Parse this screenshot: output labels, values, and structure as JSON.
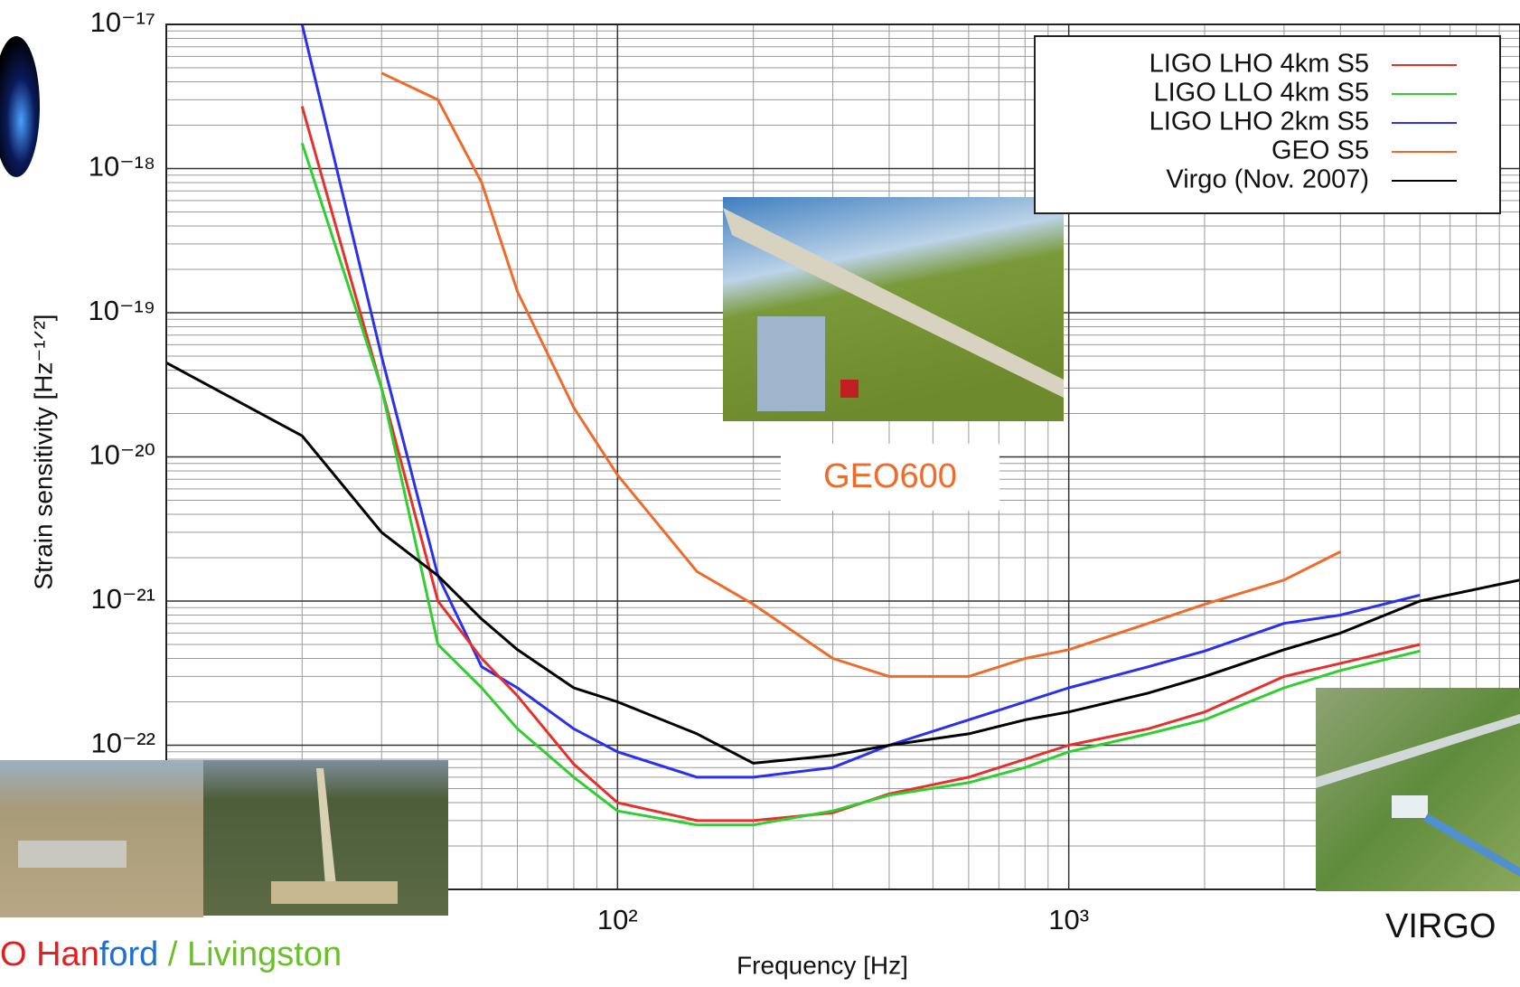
{
  "chart_data": {
    "type": "line",
    "x_label": "Frequency [Hz]",
    "y_label": "Strain sensitivity [Hz⁻¹ᐟ²]",
    "x_scale": "log",
    "y_scale": "log",
    "xlim": [
      10,
      10000
    ],
    "ylim": [
      1e-23,
      1e-17
    ],
    "xticks": [
      {
        "value": 100,
        "label": "10²"
      },
      {
        "value": 1000,
        "label": "10³"
      }
    ],
    "yticks": [
      {
        "value": 1e-17,
        "label": "10⁻¹⁷"
      },
      {
        "value": 1e-18,
        "label": "10⁻¹⁸"
      },
      {
        "value": 1e-19,
        "label": "10⁻¹⁹"
      },
      {
        "value": 1e-20,
        "label": "10⁻²⁰"
      },
      {
        "value": 1e-21,
        "label": "10⁻²¹"
      },
      {
        "value": 1e-22,
        "label": "10⁻²²"
      }
    ],
    "grid": true,
    "legend": "upper right",
    "x": [
      10,
      20,
      30,
      40,
      50,
      60,
      80,
      100,
      150,
      200,
      300,
      400,
      600,
      800,
      1000,
      1500,
      2000,
      3000,
      4000,
      6000,
      10000
    ],
    "series": [
      {
        "name": "LIGO LHO 4km S5",
        "color": "#e8302a",
        "values": [
          null,
          2.7e-18,
          3e-20,
          1e-21,
          4e-22,
          2.2e-22,
          7.4e-23,
          4e-23,
          3e-23,
          3e-23,
          3.4e-23,
          4.6e-23,
          6e-23,
          8e-23,
          1e-22,
          1.3e-22,
          1.7e-22,
          3e-22,
          3.7e-22,
          5e-22,
          null
        ]
      },
      {
        "name": "LIGO LLO 4km S5",
        "color": "#2fcf2f",
        "values": [
          null,
          1.5e-18,
          3e-20,
          5e-22,
          2.5e-22,
          1.3e-22,
          6e-23,
          3.5e-23,
          2.8e-23,
          2.8e-23,
          3.5e-23,
          4.5e-23,
          5.5e-23,
          7e-23,
          9e-23,
          1.2e-22,
          1.5e-22,
          2.5e-22,
          3.3e-22,
          4.5e-22,
          null
        ]
      },
      {
        "name": "LIGO LHO 2km S5",
        "color": "#2a2ff0",
        "values": [
          null,
          1e-17,
          5e-20,
          1.5e-21,
          3.5e-22,
          2.5e-22,
          1.3e-22,
          9e-23,
          6e-23,
          6e-23,
          7e-23,
          1e-22,
          1.5e-22,
          2e-22,
          2.5e-22,
          3.5e-22,
          4.5e-22,
          7e-22,
          8e-22,
          1.1e-21,
          null
        ]
      },
      {
        "name": "GEO S5",
        "color": "#f06a2a",
        "values": [
          null,
          null,
          4.6e-18,
          3e-18,
          8e-19,
          1.4e-19,
          2.2e-20,
          7.5e-21,
          1.6e-21,
          9.5e-22,
          4e-22,
          3e-22,
          3e-22,
          4e-22,
          4.6e-22,
          7e-22,
          9.5e-22,
          1.4e-21,
          2.2e-21,
          null,
          null
        ]
      },
      {
        "name": "Virgo (Nov. 2007)",
        "color": "#000000",
        "values": [
          4.5e-20,
          1.4e-20,
          3e-21,
          1.5e-21,
          7.5e-22,
          4.6e-22,
          2.5e-22,
          2e-22,
          1.2e-22,
          7.5e-23,
          8.5e-23,
          1e-22,
          1.2e-22,
          1.5e-22,
          1.7e-22,
          2.3e-22,
          3e-22,
          4.6e-22,
          6e-22,
          1e-21,
          1.4e-21
        ]
      }
    ],
    "annotations": {
      "geo": "GEO600",
      "virgo": "VIRGO",
      "ligo_parts": [
        {
          "text": "O Han",
          "color": "#e02020"
        },
        {
          "text": "ford",
          "color": "#1f6fd0"
        },
        {
          "text": " / Livingston",
          "color": "#6abf2a"
        }
      ]
    }
  }
}
